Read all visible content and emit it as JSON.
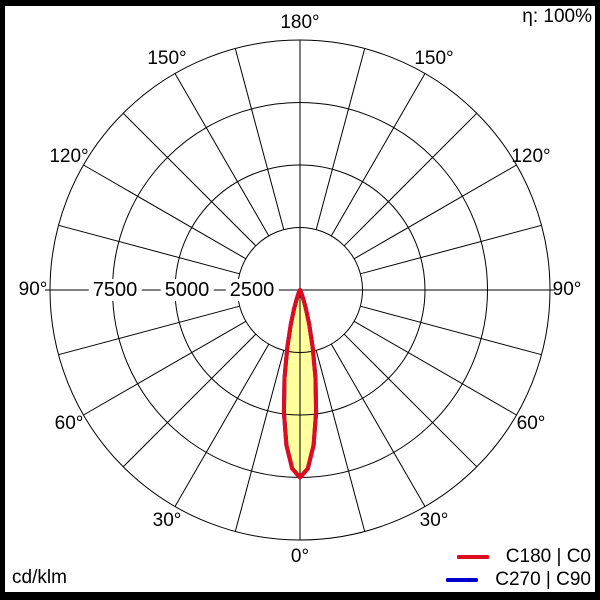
{
  "chart_data": {
    "type": "polar",
    "description": "Luminous intensity distribution polar curve",
    "unit": "cd/klm",
    "efficiency": "η: 100%",
    "radial_axis": {
      "tick_values": [
        2500,
        5000,
        7500
      ],
      "tick_labels_display": [
        "7500",
        "5000",
        "2500"
      ],
      "max": 10000
    },
    "angle_axis": {
      "spoke_step_deg": 15,
      "labels": [
        {
          "deg": 0,
          "text": "0°"
        },
        {
          "deg": 30,
          "text": "30°"
        },
        {
          "deg": 60,
          "text": "60°"
        },
        {
          "deg": 90,
          "text": "90°"
        },
        {
          "deg": 120,
          "text": "120°"
        },
        {
          "deg": 150,
          "text": "150°"
        },
        {
          "deg": 180,
          "text": "180°"
        }
      ]
    },
    "series": [
      {
        "name": "C180 | C0",
        "color": "#e00b1e",
        "fill_color": "#ffff9e",
        "gamma_deg": [
          0,
          2.5,
          5,
          7.5,
          10,
          12.5,
          15,
          17.5,
          20,
          22.5,
          25,
          30,
          35,
          40,
          50,
          60,
          70,
          80,
          90
        ],
        "cd_per_klm": [
          7500,
          7150,
          6230,
          4930,
          3570,
          2350,
          1420,
          780,
          385,
          175,
          73,
          10,
          1,
          0,
          0,
          0,
          0,
          0,
          0
        ]
      },
      {
        "name": "C270 | C90",
        "color": "#0000cd",
        "fill_color": "",
        "gamma_deg": [
          0,
          2.5,
          5,
          7.5,
          10,
          12.5,
          15,
          17.5,
          20,
          22.5,
          25,
          30,
          35,
          40,
          50,
          60,
          70,
          80,
          90
        ],
        "cd_per_klm": [
          7500,
          7150,
          6230,
          4930,
          3570,
          2350,
          1420,
          780,
          385,
          175,
          73,
          10,
          1,
          0,
          0,
          0,
          0,
          0,
          0
        ]
      }
    ]
  }
}
